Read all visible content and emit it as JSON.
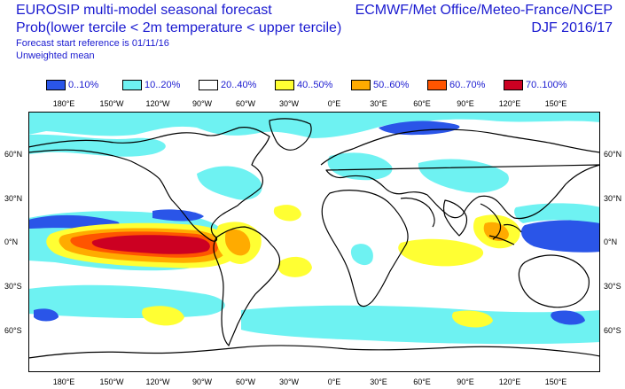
{
  "header": {
    "title_left_1": "EUROSIP multi-model seasonal forecast",
    "title_left_2": "Prob(lower tercile < 2m temperature < upper tercile)",
    "subtitle_1": "Forecast start reference is 01/11/16",
    "subtitle_2": "Unweighted mean",
    "title_right_1": "ECMWF/Met Office/Meteo-France/NCEP",
    "title_right_2": "DJF 2016/17"
  },
  "legend": [
    {
      "label": "0..10%",
      "color": "#2a55e8"
    },
    {
      "label": "10..20%",
      "color": "#6ef2f2"
    },
    {
      "label": "20..40%",
      "color": "#ffffff"
    },
    {
      "label": "40..50%",
      "color": "#ffff33"
    },
    {
      "label": "50..60%",
      "color": "#ffab00"
    },
    {
      "label": "60..70%",
      "color": "#ff5500"
    },
    {
      "label": "70..100%",
      "color": "#cc0022"
    }
  ],
  "map": {
    "lon_labels_top": [
      "180°E",
      "150°W",
      "120°W",
      "90°W",
      "60°W",
      "30°W",
      "0°E",
      "30°E",
      "60°E",
      "90°E",
      "120°E",
      "150°E"
    ],
    "lon_labels_bottom": [
      "180°E",
      "150°W",
      "120°W",
      "90°W",
      "60°W",
      "30°W",
      "0°E",
      "30°E",
      "60°E",
      "90°E",
      "120°E",
      "150°E"
    ],
    "lat_labels_left": [
      "60°N",
      "30°N",
      "0°N",
      "30°S",
      "60°S"
    ],
    "lat_labels_right": [
      "60°N",
      "30°N",
      "0°N",
      "30°S",
      "60°S"
    ]
  }
}
